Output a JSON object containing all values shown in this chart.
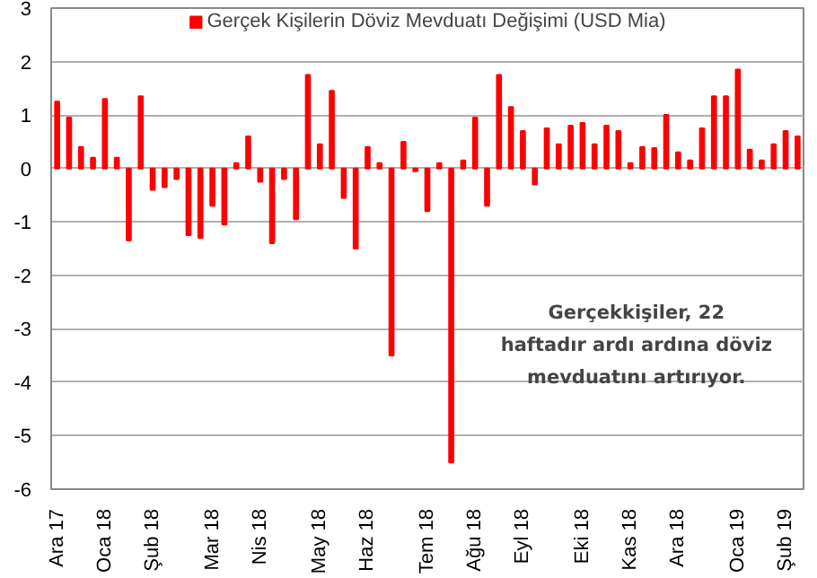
{
  "chart_data": {
    "type": "bar",
    "categories": [
      "Ara 17",
      null,
      null,
      null,
      "Oca 18",
      null,
      null,
      null,
      "Şub 18",
      null,
      null,
      null,
      null,
      "Mar 18",
      null,
      null,
      null,
      "Nis 18",
      null,
      null,
      null,
      null,
      "May 18",
      null,
      null,
      null,
      "Haz 18",
      null,
      null,
      null,
      null,
      "Tem 18",
      null,
      null,
      null,
      "Ağu 18",
      null,
      null,
      null,
      "Eyl 18",
      null,
      null,
      null,
      null,
      "Eki 18",
      null,
      null,
      null,
      "Kas 18",
      null,
      null,
      null,
      "Ara 18",
      null,
      null,
      null,
      null,
      "Oca 19",
      null,
      null,
      null,
      "Şub 19",
      null
    ],
    "series": [
      {
        "name": "Gerçek Kişilerin Döviz Mevduatı Değişimi (USD Mia)",
        "color": "#ff0000",
        "values": [
          1.25,
          0.95,
          0.4,
          0.2,
          1.3,
          0.2,
          -1.35,
          1.35,
          -0.4,
          -0.35,
          -0.2,
          -1.25,
          -1.3,
          -0.7,
          -1.05,
          0.1,
          0.6,
          -0.25,
          -1.4,
          -0.2,
          -0.95,
          1.75,
          0.45,
          1.45,
          -0.55,
          -1.5,
          0.4,
          0.1,
          -3.5,
          0.5,
          -0.05,
          -0.8,
          0.1,
          -5.5,
          0.15,
          0.95,
          -0.7,
          1.75,
          1.15,
          0.7,
          -0.3,
          0.75,
          0.45,
          0.8,
          0.85,
          0.45,
          0.8,
          0.7,
          0.1,
          0.4,
          0.38,
          1.0,
          0.3,
          0.15,
          0.75,
          1.35,
          1.35,
          1.85,
          0.35,
          0.15,
          0.45,
          0.7,
          0.6
        ]
      }
    ],
    "ylim": [
      -6,
      3
    ],
    "yticks": [
      -6,
      -5,
      -4,
      -3,
      -2,
      -1,
      0,
      1,
      2,
      3
    ],
    "grid": "y",
    "legend": "top",
    "annotations": [
      "Gerçekkişiler, 22\nhaftadır ardı ardına döviz\nmevduatını artırıyor."
    ]
  }
}
